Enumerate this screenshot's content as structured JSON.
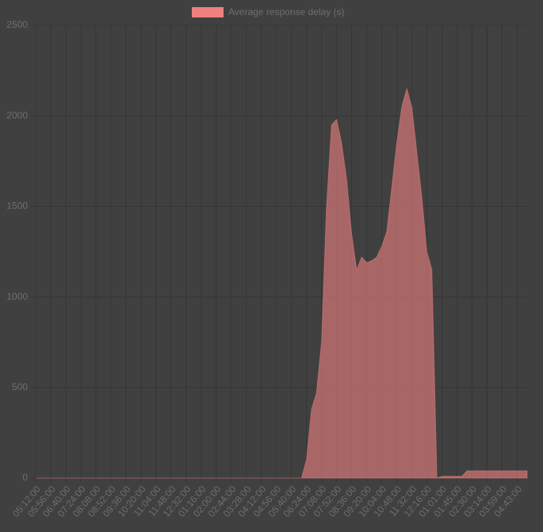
{
  "chart_data": {
    "type": "area",
    "legend": "Average response delay (s)",
    "color": "#f08080",
    "categories": [
      "05:12:00",
      null,
      null,
      "05:56:00",
      null,
      null,
      "06:40:00",
      null,
      null,
      "07:24:00",
      null,
      null,
      "08:08:00",
      null,
      null,
      "08:52:00",
      null,
      null,
      "09:36:00",
      null,
      null,
      "10:20:00",
      null,
      null,
      "11:04:00",
      null,
      null,
      "11:48:00",
      null,
      null,
      "12:32:00",
      null,
      null,
      "01:16:00",
      null,
      null,
      "02:00:00",
      null,
      null,
      "02:44:00",
      null,
      null,
      "03:28:00",
      null,
      null,
      "04:12:00",
      null,
      null,
      "04:56:00",
      null,
      null,
      "05:40:00",
      null,
      null,
      "06:24:00",
      null,
      null,
      "07:08:00",
      null,
      null,
      "07:52:00",
      null,
      null,
      "08:36:00",
      null,
      null,
      "09:20:00",
      null,
      null,
      "10:04:00",
      null,
      null,
      "10:48:00",
      null,
      null,
      "11:32:00",
      null,
      null,
      "12:16:00",
      null,
      null,
      "01:01:00",
      null,
      null,
      "01:45:00",
      null,
      null,
      "02:30:00",
      null,
      null,
      "03:14:00",
      null,
      null,
      "03:59:00",
      null,
      null,
      "04:43:00",
      null,
      null
    ],
    "values": [
      0,
      0,
      0,
      0,
      0,
      0,
      0,
      0,
      0,
      0,
      0,
      0,
      0,
      0,
      0,
      0,
      0,
      0,
      0,
      0,
      0,
      0,
      0,
      0,
      0,
      0,
      0,
      0,
      0,
      0,
      0,
      0,
      0,
      0,
      0,
      0,
      0,
      0,
      0,
      0,
      0,
      0,
      0,
      0,
      0,
      0,
      0,
      0,
      0,
      0,
      0,
      0,
      0,
      0,
      100,
      380,
      470,
      750,
      1500,
      1950,
      1980,
      1850,
      1650,
      1350,
      1150,
      1220,
      1190,
      1200,
      1220,
      1280,
      1360,
      1600,
      1850,
      2050,
      2150,
      2050,
      1800,
      1550,
      1250,
      1150,
      0,
      10,
      10,
      10,
      10,
      10,
      40,
      40,
      40,
      40,
      40,
      40,
      40,
      40,
      40,
      40,
      40,
      40,
      40
    ],
    "ylim": [
      0,
      2500
    ],
    "yticks": [
      0,
      500,
      1000,
      1500,
      2000,
      2500
    ],
    "grid": true
  }
}
